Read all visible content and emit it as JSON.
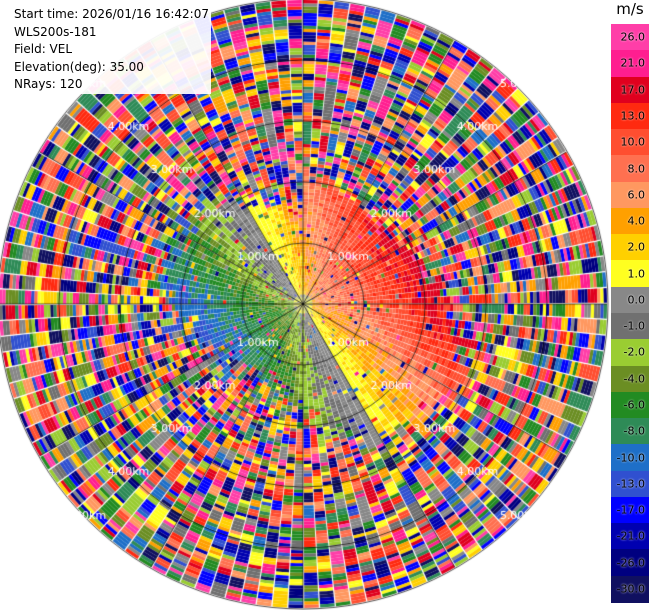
{
  "info": {
    "start_time": "Start time: 2026/01/16 16:42:07",
    "site": "WLS200s-181",
    "field": "Field: VEL",
    "elevation": "Elevation(deg): 35.00",
    "nrays": "NRays: 120"
  },
  "colorbar": {
    "unit": "m/s",
    "labels": [
      "26.0",
      "21.0",
      "17.0",
      "13.0",
      "10.0",
      "8.0",
      "6.0",
      "4.0",
      "2.0",
      "1.0",
      "0.0",
      "-1.0",
      "-2.0",
      "-4.0",
      "-6.0",
      "-8.0",
      "-10.0",
      "-13.0",
      "-17.0",
      "-21.0",
      "-26.0",
      "-30.0"
    ],
    "colors": [
      "#ff3ea8",
      "#ff1e90",
      "#e0001e",
      "#ff2a10",
      "#ff4e30",
      "#ff7050",
      "#ff9860",
      "#ffa000",
      "#ffd000",
      "#ffff20",
      "#888888",
      "#707070",
      "#9acd32",
      "#6b8e23",
      "#228b22",
      "#2e8b57",
      "#1e6fc8",
      "#3050d0",
      "#0000ff",
      "#0000b0",
      "#000080",
      "#101060"
    ]
  },
  "chart_data": {
    "type": "polar-ppi",
    "field": "VEL",
    "units": "m/s",
    "elevation_deg": 35.0,
    "nrays": 120,
    "ring_labels": [
      "1.00km",
      "2.00km",
      "3.00km",
      "4.00km",
      "5.00km"
    ],
    "max_range_km": 5.5,
    "pattern": "Coherent velocity field within about 1.5-2 km (positive, yellow-orange-red, to the east and south-east; negative/grey-green to the west and north); random noise colours beyond."
  }
}
